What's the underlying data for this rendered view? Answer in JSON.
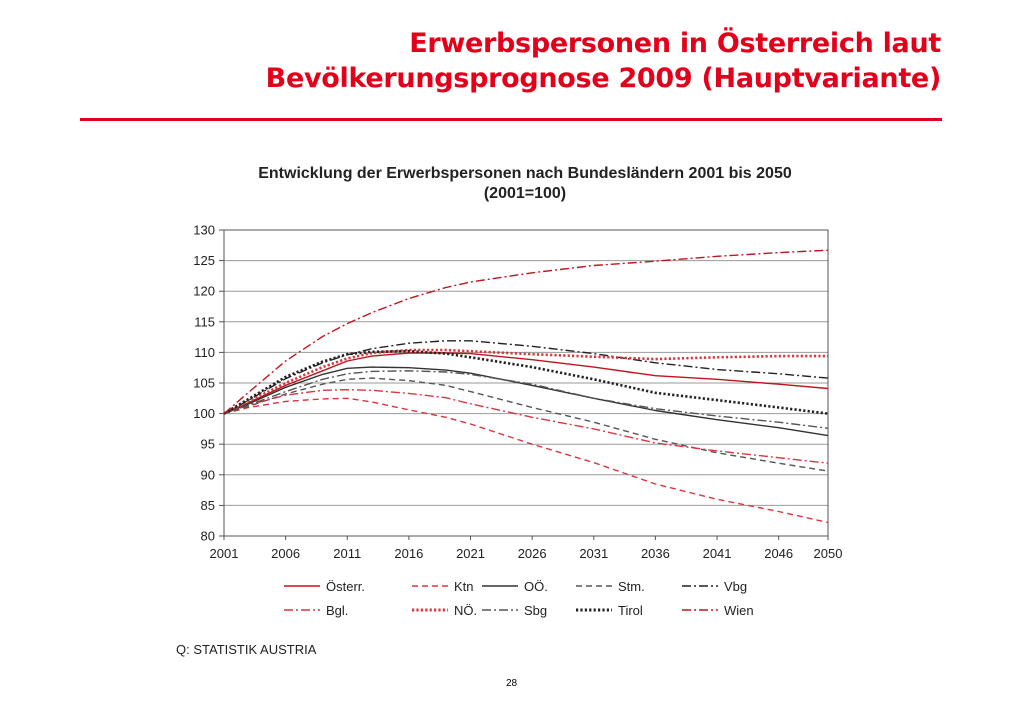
{
  "slide": {
    "title_line1": "Erwerbspersonen in Österreich laut",
    "title_line2": "Bevölkerungsprognose 2009 (Hauptvariante)",
    "accent_color": "#e2001a",
    "source": "Q: STATISTIK AUSTRIA",
    "page_number": "28"
  },
  "chart_data": {
    "type": "line",
    "title": "Entwicklung der Erwerbspersonen nach Bundesländern 2001 bis 2050",
    "subtitle": "(2001=100)",
    "xlabel": "",
    "ylabel": "",
    "xlim": [
      2001,
      2050
    ],
    "ylim": [
      80,
      130
    ],
    "x_ticks": [
      2001,
      2006,
      2011,
      2016,
      2021,
      2026,
      2031,
      2036,
      2041,
      2046,
      2050
    ],
    "y_ticks": [
      80,
      85,
      90,
      95,
      100,
      105,
      110,
      115,
      120,
      125,
      130
    ],
    "grid": "horizontal",
    "legend_position": "bottom",
    "x": [
      2001,
      2003,
      2006,
      2009,
      2011,
      2013,
      2016,
      2019,
      2021,
      2026,
      2031,
      2036,
      2041,
      2046,
      2050
    ],
    "series": [
      {
        "name": "Österr.",
        "color": "#c0141e",
        "dash": "solid",
        "values": [
          100,
          101.8,
          104.6,
          107.0,
          108.6,
          109.4,
          109.9,
          109.9,
          109.8,
          108.8,
          107.6,
          106.2,
          105.6,
          104.8,
          104.1
        ]
      },
      {
        "name": "Ktn",
        "color": "#d9363e",
        "dash": "dash",
        "values": [
          100,
          101.0,
          102.0,
          102.4,
          102.5,
          101.9,
          100.6,
          99.4,
          98.3,
          95.0,
          92.0,
          88.5,
          86.0,
          84.0,
          82.2
        ]
      },
      {
        "name": "OÖ.",
        "color": "#333333",
        "dash": "solid",
        "values": [
          100,
          101.6,
          104.3,
          106.4,
          107.4,
          107.6,
          107.5,
          107.1,
          106.6,
          104.6,
          102.5,
          100.5,
          99.0,
          97.7,
          96.4
        ]
      },
      {
        "name": "Stm.",
        "color": "#555555",
        "dash": "dash",
        "values": [
          100,
          101.2,
          103.2,
          104.8,
          105.6,
          105.8,
          105.4,
          104.6,
          103.6,
          101.0,
          98.6,
          95.8,
          93.6,
          91.9,
          90.6
        ]
      },
      {
        "name": "Vbg",
        "color": "#222222",
        "dash": "dashdot",
        "values": [
          100,
          102.2,
          105.7,
          108.3,
          109.6,
          110.6,
          111.5,
          111.9,
          111.9,
          111.0,
          109.8,
          108.3,
          107.2,
          106.5,
          105.8
        ]
      },
      {
        "name": "Bgl.",
        "color": "#d9363e",
        "dash": "dashdot",
        "values": [
          100,
          101.4,
          103.0,
          103.8,
          103.9,
          103.8,
          103.3,
          102.6,
          101.6,
          99.4,
          97.5,
          95.2,
          93.9,
          92.8,
          91.9
        ]
      },
      {
        "name": "NÖ.",
        "color": "#d9363e",
        "dash": "dot",
        "values": [
          100,
          102.0,
          105.0,
          107.6,
          109.0,
          109.9,
          110.4,
          110.4,
          110.2,
          109.7,
          109.3,
          108.9,
          109.2,
          109.4,
          109.4
        ]
      },
      {
        "name": "Sbg",
        "color": "#555555",
        "dash": "dashdot",
        "values": [
          100,
          101.4,
          103.6,
          105.6,
          106.5,
          106.9,
          107.0,
          106.8,
          106.4,
          104.8,
          102.5,
          100.8,
          99.6,
          98.6,
          97.6
        ]
      },
      {
        "name": "Tirol",
        "color": "#222222",
        "dash": "dot",
        "values": [
          100,
          102.4,
          106.0,
          108.5,
          109.7,
          110.1,
          110.2,
          109.8,
          109.2,
          107.6,
          105.6,
          103.4,
          102.2,
          101.0,
          100.0
        ]
      },
      {
        "name": "Wien",
        "color": "#c0141e",
        "dash": "dashdot",
        "values": [
          100,
          103.5,
          108.6,
          112.6,
          114.7,
          116.5,
          118.8,
          120.6,
          121.5,
          123.0,
          124.2,
          124.9,
          125.7,
          126.3,
          126.7
        ]
      }
    ]
  }
}
